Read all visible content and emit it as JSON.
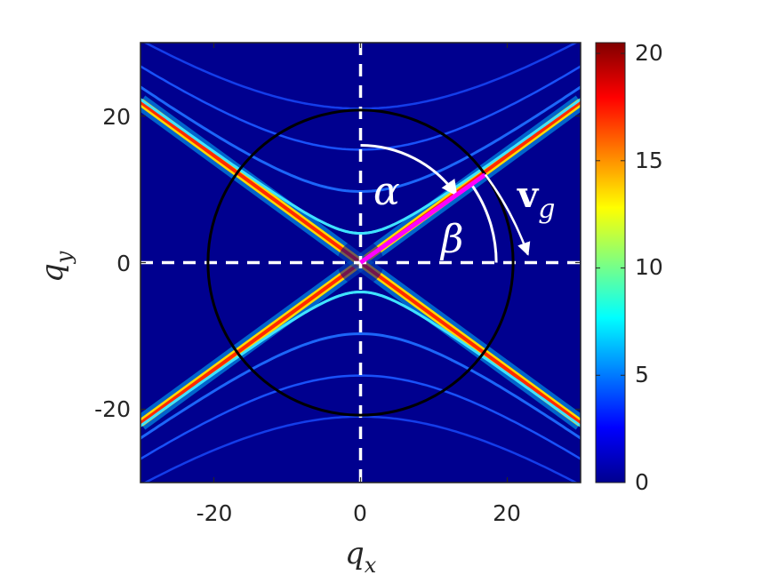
{
  "chart_data": {
    "type": "heatmap",
    "title": "",
    "xlabel": {
      "base": "q",
      "sub": "x"
    },
    "ylabel": {
      "base": "q",
      "sub": "y"
    },
    "xlim": [
      -30,
      30
    ],
    "ylim": [
      -30,
      30
    ],
    "xticks": [
      "-20",
      "0",
      "20"
    ],
    "yticks": [
      "-20",
      "0",
      "20"
    ],
    "colorbar": {
      "colormap": "jet",
      "range": [
        0,
        20.5
      ],
      "ticks": [
        "0",
        "5",
        "10",
        "15",
        "20"
      ]
    },
    "features": {
      "diagonal_lines": "|q_y| = 0.73 |q_x|, peak intensity about 20",
      "hyperbola_vertices_qy": [
        4,
        9.7,
        15.4,
        21
      ],
      "asymptote_slope": 0.73
    },
    "circle": {
      "center": [
        0,
        0
      ],
      "radius": 20.8,
      "color": "#000000"
    },
    "dashed_axes": {
      "color": "#ffffff"
    },
    "annotations": {
      "alpha": "α",
      "beta": "β",
      "vg_bold": "v",
      "vg_sub": "g",
      "group_velocity_vector": {
        "from": [
          0,
          0
        ],
        "to": [
          17,
          12
        ],
        "color": "#ff00ff"
      }
    },
    "grid": false
  }
}
